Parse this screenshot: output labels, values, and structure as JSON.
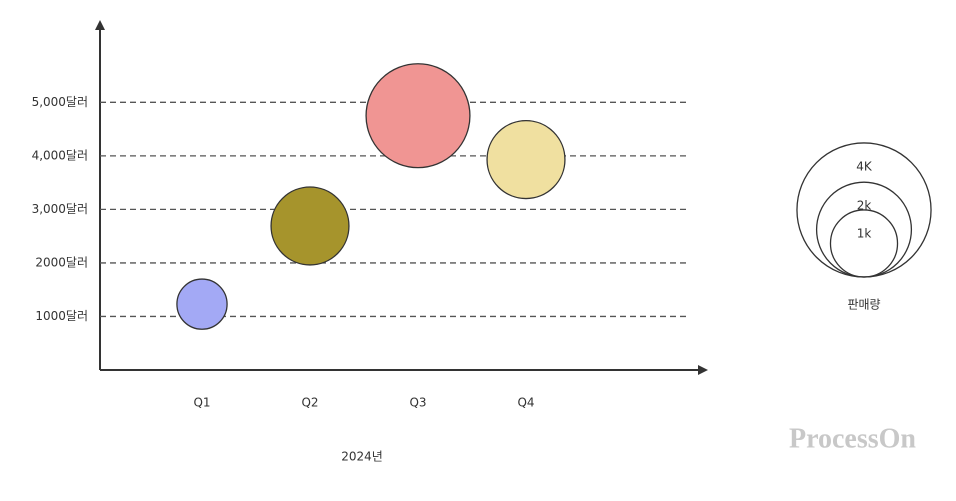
{
  "chart_data": {
    "type": "bubble",
    "x_label": "2024년",
    "categories": [
      "Q1",
      "Q2",
      "Q3",
      "Q4"
    ],
    "values": [
      1230,
      2690,
      4750,
      3930
    ],
    "sizes": [
      560,
      1350,
      2400,
      1350
    ],
    "colors": [
      "#a3a9f5",
      "#a6942c",
      "#f09593",
      "#f0e0a0"
    ],
    "ylim": [
      0,
      6500
    ],
    "yticks": [
      {
        "value": 1000,
        "label": "1000달러"
      },
      {
        "value": 2000,
        "label": "2000달러"
      },
      {
        "value": 3000,
        "label": "3,000달러"
      },
      {
        "value": 4000,
        "label": "4,000달러"
      },
      {
        "value": 5000,
        "label": "5,000달러"
      }
    ],
    "grid": true,
    "size_legend": {
      "title": "판매량",
      "items": [
        {
          "value": 4000,
          "label": "4K"
        },
        {
          "value": 2000,
          "label": "2k"
        },
        {
          "value": 1000,
          "label": "1k"
        }
      ]
    },
    "watermark": "ProcessOn"
  }
}
